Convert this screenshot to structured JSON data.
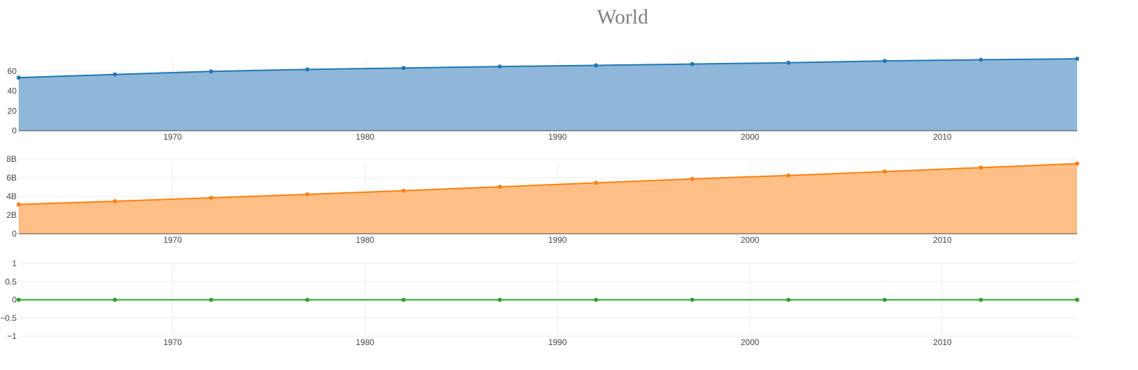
{
  "chart_data": {
    "title": "World",
    "type": "area",
    "x": [
      1962,
      1967,
      1972,
      1977,
      1982,
      1987,
      1992,
      1997,
      2002,
      2007,
      2012,
      2017
    ],
    "x_range": [
      1962,
      2017
    ],
    "x_ticks": [
      1970,
      1980,
      1990,
      2000,
      2010
    ],
    "grid": true,
    "subplots": [
      {
        "type": "area",
        "color": "#1f77b4",
        "fill_color": "#8fb7d9",
        "values": [
          53.5,
          56.7,
          59.8,
          61.8,
          63.2,
          64.7,
          65.9,
          67.2,
          68.5,
          70.3,
          71.5,
          72.5
        ],
        "ylim": [
          0,
          72.5
        ],
        "y_ticks": [
          0,
          20,
          40,
          60
        ],
        "y_tick_labels": [
          "0",
          "20",
          "40",
          "60"
        ]
      },
      {
        "type": "area",
        "color": "#ff7f0e",
        "fill_color": "#ffbf87",
        "values": [
          3.14,
          3.48,
          3.85,
          4.22,
          4.61,
          5.02,
          5.45,
          5.87,
          6.24,
          6.65,
          7.08,
          7.5
        ],
        "ylim": [
          0,
          7.55
        ],
        "y_ticks": [
          0,
          2,
          4,
          6,
          8
        ],
        "y_tick_labels": [
          "0",
          "2B",
          "4B",
          "6B",
          "8B"
        ]
      },
      {
        "type": "line",
        "color": "#2ca02c",
        "values": [
          0,
          0,
          0,
          0,
          0,
          0,
          0,
          0,
          0,
          0,
          0,
          0
        ],
        "ylim": [
          -1,
          1
        ],
        "y_ticks": [
          -1,
          -0.5,
          0,
          0.5,
          1
        ],
        "y_tick_labels": [
          "−1",
          "−0.5",
          "0",
          "0.5",
          "1"
        ]
      }
    ]
  }
}
